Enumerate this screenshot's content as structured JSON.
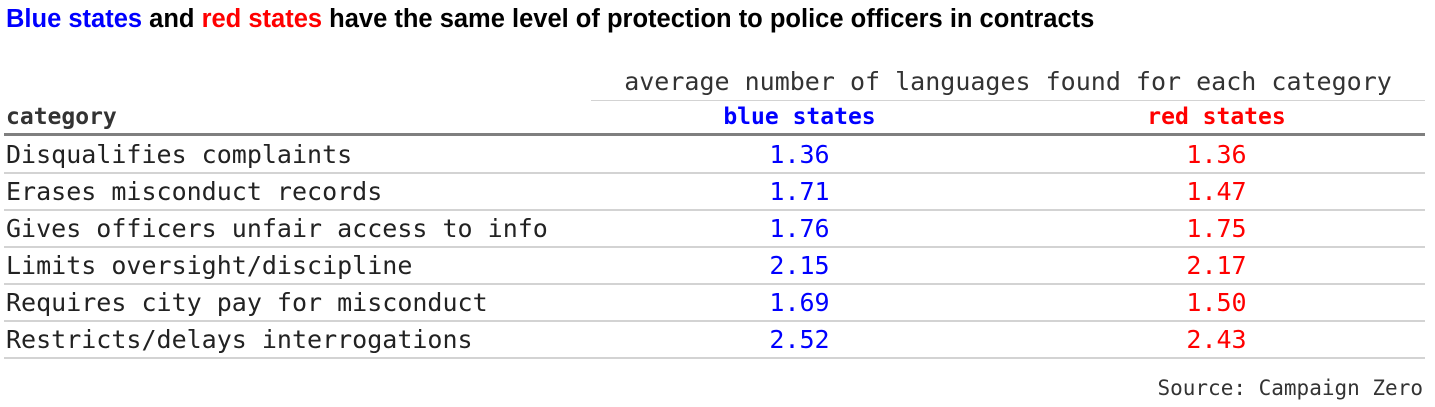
{
  "title": {
    "part1": "Blue states",
    "part2": " and ",
    "part3": "red states",
    "part4": " have the same level of protection to police officers in contracts"
  },
  "colors": {
    "blue": "#0000ff",
    "red": "#ff0000"
  },
  "chart_data": {
    "type": "table",
    "spanner_label": "average number of languages found for each category",
    "columns": [
      "category",
      "blue states",
      "red states"
    ],
    "rows": [
      {
        "category": "Disqualifies complaints",
        "blue": "1.36",
        "red": "1.36"
      },
      {
        "category": "Erases misconduct records",
        "blue": "1.71",
        "red": "1.47"
      },
      {
        "category": "Gives officers unfair access to info",
        "blue": "1.76",
        "red": "1.75"
      },
      {
        "category": "Limits oversight/discipline",
        "blue": "2.15",
        "red": "2.17"
      },
      {
        "category": "Requires city pay for misconduct",
        "blue": "1.69",
        "red": "1.50"
      },
      {
        "category": "Restricts/delays interrogations",
        "blue": "2.52",
        "red": "2.43"
      }
    ],
    "source": "Source: Campaign Zero"
  }
}
